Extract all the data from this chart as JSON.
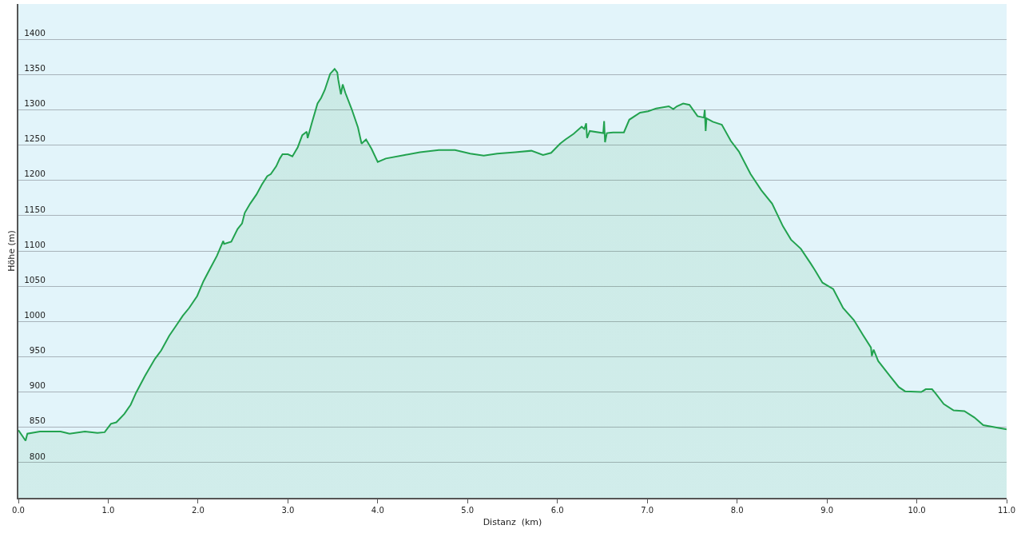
{
  "chart_data": {
    "type": "area",
    "xlabel": "Distanz  (km)",
    "ylabel": "Höhe (m)",
    "x": [
      0.0,
      0.08,
      0.1,
      0.24,
      0.47,
      0.57,
      0.74,
      0.88,
      0.96,
      1.03,
      1.09,
      1.18,
      1.25,
      1.31,
      1.41,
      1.52,
      1.59,
      1.68,
      1.75,
      1.83,
      1.9,
      1.99,
      2.06,
      2.13,
      2.21,
      2.28,
      2.29,
      2.37,
      2.44,
      2.49,
      2.52,
      2.58,
      2.65,
      2.71,
      2.77,
      2.81,
      2.87,
      2.91,
      2.94,
      3.0,
      3.05,
      3.11,
      3.16,
      3.21,
      3.22,
      3.27,
      3.33,
      3.37,
      3.41,
      3.47,
      3.52,
      3.55,
      3.56,
      3.59,
      3.61,
      3.64,
      3.71,
      3.78,
      3.82,
      3.87,
      3.93,
      4.0,
      4.09,
      4.3,
      4.47,
      4.68,
      4.86,
      5.03,
      5.18,
      5.33,
      5.53,
      5.71,
      5.84,
      5.93,
      6.03,
      6.09,
      6.18,
      6.27,
      6.3,
      6.32,
      6.33,
      6.36,
      6.51,
      6.52,
      6.53,
      6.55,
      6.62,
      6.74,
      6.8,
      6.92,
      7.01,
      7.1,
      7.24,
      7.29,
      7.33,
      7.4,
      7.47,
      7.56,
      7.63,
      7.64,
      7.65,
      7.66,
      7.73,
      7.83,
      7.93,
      8.02,
      8.15,
      8.27,
      8.39,
      8.51,
      8.6,
      8.71,
      8.82,
      8.87,
      8.95,
      9.07,
      9.18,
      9.3,
      9.4,
      9.49,
      9.5,
      9.52,
      9.57,
      9.7,
      9.8,
      9.87,
      10.05,
      10.1,
      10.17,
      10.21,
      10.3,
      10.41,
      10.53,
      10.64,
      10.74,
      11.0
    ],
    "series": [
      {
        "color": "#22a24f",
        "values": [
          846,
          831,
          841,
          844,
          844,
          841,
          844,
          842,
          843,
          855,
          857,
          869,
          882,
          899,
          923,
          947,
          959,
          980,
          993,
          1008,
          1019,
          1036,
          1057,
          1074,
          1093,
          1114,
          1110,
          1113,
          1131,
          1139,
          1154,
          1167,
          1180,
          1194,
          1206,
          1209,
          1220,
          1231,
          1237,
          1237,
          1234,
          1247,
          1264,
          1269,
          1260,
          1283,
          1309,
          1317,
          1328,
          1351,
          1358,
          1353,
          1343,
          1322,
          1336,
          1324,
          1301,
          1275,
          1252,
          1258,
          1245,
          1226,
          1231,
          1236,
          1240,
          1243,
          1243,
          1238,
          1235,
          1238,
          1240,
          1242,
          1236,
          1239,
          1252,
          1258,
          1266,
          1276,
          1273,
          1281,
          1260,
          1270,
          1267,
          1284,
          1254,
          1267,
          1268,
          1268,
          1286,
          1296,
          1298,
          1302,
          1305,
          1301,
          1305,
          1309,
          1307,
          1291,
          1289,
          1300,
          1270,
          1288,
          1283,
          1279,
          1256,
          1241,
          1209,
          1186,
          1167,
          1135,
          1116,
          1103,
          1082,
          1072,
          1055,
          1046,
          1019,
          1002,
          981,
          963,
          951,
          960,
          944,
          923,
          907,
          901,
          900,
          904,
          904,
          898,
          883,
          874,
          873,
          864,
          853,
          847
        ]
      }
    ],
    "xlim": [
      0,
      11
    ],
    "ylim": [
      750,
      1450
    ],
    "xticks": [
      {
        "value": 0,
        "label": "0.0"
      },
      {
        "value": 1,
        "label": "1.0"
      },
      {
        "value": 2,
        "label": "2.0"
      },
      {
        "value": 3,
        "label": "3.0"
      },
      {
        "value": 4,
        "label": "4.0"
      },
      {
        "value": 5,
        "label": "5.0"
      },
      {
        "value": 6,
        "label": "6.0"
      },
      {
        "value": 7,
        "label": "7.0"
      },
      {
        "value": 8,
        "label": "8.0"
      },
      {
        "value": 9,
        "label": "9.0"
      },
      {
        "value": 10,
        "label": "10.0"
      },
      {
        "value": 11,
        "label": "11.0"
      }
    ],
    "yticks": [
      800,
      850,
      900,
      950,
      1000,
      1050,
      1100,
      1150,
      1200,
      1250,
      1300,
      1350,
      1400
    ],
    "grid": "y"
  }
}
